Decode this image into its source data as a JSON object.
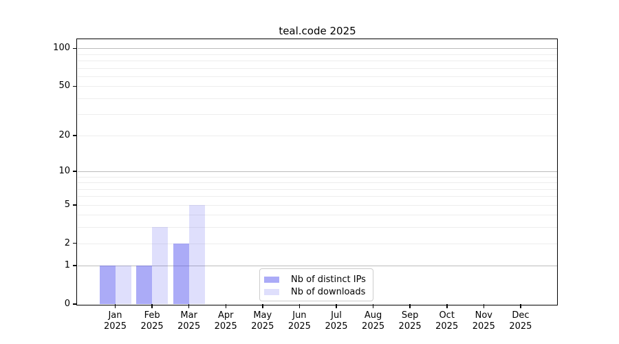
{
  "chart_data": {
    "type": "bar",
    "title": "teal.code 2025",
    "categories": [
      "Jan 2025",
      "Feb 2025",
      "Mar 2025",
      "Apr 2025",
      "May 2025",
      "Jun 2025",
      "Jul 2025",
      "Aug 2025",
      "Sep 2025",
      "Oct 2025",
      "Nov 2025",
      "Dec 2025"
    ],
    "x_tick_labels": [
      {
        "month": "Jan",
        "year": "2025"
      },
      {
        "month": "Feb",
        "year": "2025"
      },
      {
        "month": "Mar",
        "year": "2025"
      },
      {
        "month": "Apr",
        "year": "2025"
      },
      {
        "month": "May",
        "year": "2025"
      },
      {
        "month": "Jun",
        "year": "2025"
      },
      {
        "month": "Jul",
        "year": "2025"
      },
      {
        "month": "Aug",
        "year": "2025"
      },
      {
        "month": "Sep",
        "year": "2025"
      },
      {
        "month": "Oct",
        "year": "2025"
      },
      {
        "month": "Nov",
        "year": "2025"
      },
      {
        "month": "Dec",
        "year": "2025"
      }
    ],
    "series": [
      {
        "name": "Nb of distinct IPs",
        "color": "rgba(80,80,238,0.48)",
        "values": [
          1,
          1,
          2,
          0,
          0,
          0,
          0,
          0,
          0,
          0,
          0,
          0
        ]
      },
      {
        "name": "Nb of downloads",
        "color": "rgba(80,80,238,0.18)",
        "values": [
          1,
          3,
          5,
          0,
          0,
          0,
          0,
          0,
          0,
          0,
          0,
          0
        ]
      }
    ],
    "yscale": "log10(1+v)",
    "yticks": [
      0,
      1,
      2,
      5,
      10,
      20,
      50,
      100
    ],
    "ytick_labels": [
      "0",
      "1",
      "2",
      "5",
      "10",
      "20",
      "50",
      "100"
    ],
    "ylim": [
      0,
      117
    ],
    "grid": {
      "major_at": [
        1,
        10,
        100
      ],
      "minor_at": [
        2,
        3,
        4,
        5,
        6,
        7,
        8,
        9,
        20,
        30,
        40,
        50,
        60,
        70,
        80,
        90
      ],
      "major_color": "#bcbcbc",
      "minor_color": "#ededed"
    },
    "legend": {
      "location": "lower center",
      "border_color": "#cccccc",
      "background": "#ffffff"
    },
    "axis_color": "#000000",
    "background_color": "#ffffff"
  }
}
